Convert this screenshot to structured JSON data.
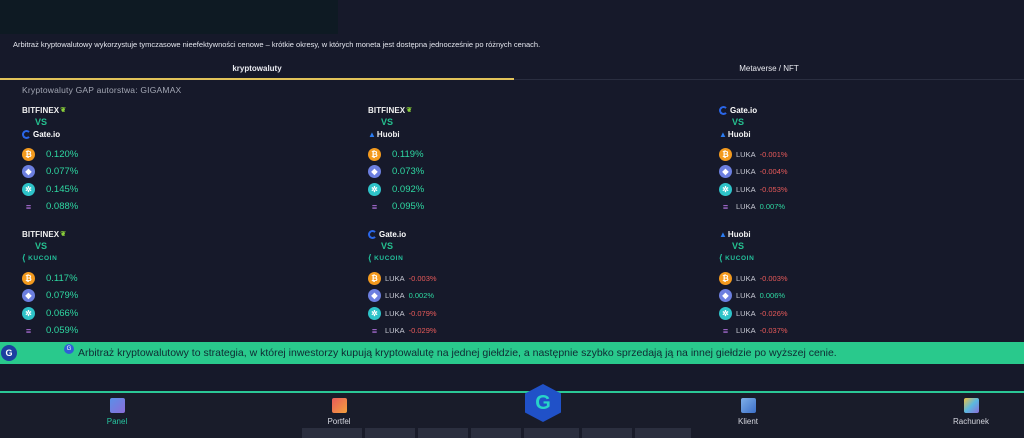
{
  "intro_text": "Arbitraż kryptowalutowy wykorzystuje tymczasowe nieefektywności cenowe – krótkie okresy, w których moneta jest dostępna jednocześnie po różnych cenach.",
  "tabs": [
    {
      "label": "kryptowaluty",
      "active": true
    },
    {
      "label": "Metaverse / NFT",
      "active": false
    }
  ],
  "gap_title": "Kryptowaluty GAP autorstwa: GIGAMAX",
  "vs_symbol": "VS",
  "pairs": [
    {
      "from": "BITFINEX",
      "to": "Gate.io",
      "rows": [
        {
          "coin": "btc",
          "value": "0.120%",
          "sign": "pos"
        },
        {
          "coin": "eth",
          "value": "0.077%",
          "sign": "pos"
        },
        {
          "coin": "atom",
          "value": "0.145%",
          "sign": "pos"
        },
        {
          "coin": "sol",
          "value": "0.088%",
          "sign": "pos"
        }
      ]
    },
    {
      "from": "BITFINEX",
      "to": "Huobi",
      "rows": [
        {
          "coin": "btc",
          "value": "0.119%",
          "sign": "pos"
        },
        {
          "coin": "eth",
          "value": "0.073%",
          "sign": "pos"
        },
        {
          "coin": "atom",
          "value": "0.092%",
          "sign": "pos"
        },
        {
          "coin": "sol",
          "value": "0.095%",
          "sign": "pos"
        }
      ]
    },
    {
      "from": "Gate.io",
      "to": "Huobi",
      "rows": [
        {
          "coin": "btc",
          "prefix": "LUKA",
          "value": "-0.001%",
          "sign": "neg"
        },
        {
          "coin": "eth",
          "prefix": "LUKA",
          "value": "-0.004%",
          "sign": "neg"
        },
        {
          "coin": "atom",
          "prefix": "LUKA",
          "value": "-0.053%",
          "sign": "neg"
        },
        {
          "coin": "sol",
          "prefix": "LUKA",
          "value": "0.007%",
          "sign": "pos"
        }
      ]
    },
    {
      "from": "BITFINEX",
      "to": "KUCOIN",
      "rows": [
        {
          "coin": "btc",
          "value": "0.117%",
          "sign": "pos"
        },
        {
          "coin": "eth",
          "value": "0.079%",
          "sign": "pos"
        },
        {
          "coin": "atom",
          "value": "0.066%",
          "sign": "pos"
        },
        {
          "coin": "sol",
          "value": "0.059%",
          "sign": "pos"
        }
      ]
    },
    {
      "from": "Gate.io",
      "to": "KUCOIN",
      "rows": [
        {
          "coin": "btc",
          "prefix": "LUKA",
          "value": "-0.003%",
          "sign": "neg"
        },
        {
          "coin": "eth",
          "prefix": "LUKA",
          "value": "0.002%",
          "sign": "pos"
        },
        {
          "coin": "atom",
          "prefix": "LUKA",
          "value": "-0.079%",
          "sign": "neg"
        },
        {
          "coin": "sol",
          "prefix": "LUKA",
          "value": "-0.029%",
          "sign": "neg"
        }
      ]
    },
    {
      "from": "Huobi",
      "to": "KUCOIN",
      "rows": [
        {
          "coin": "btc",
          "prefix": "LUKA",
          "value": "-0.003%",
          "sign": "neg"
        },
        {
          "coin": "eth",
          "prefix": "LUKA",
          "value": "0.006%",
          "sign": "pos"
        },
        {
          "coin": "atom",
          "prefix": "LUKA",
          "value": "-0.026%",
          "sign": "neg"
        },
        {
          "coin": "sol",
          "prefix": "LUKA",
          "value": "-0.037%",
          "sign": "neg"
        }
      ]
    }
  ],
  "ticker_text": "Arbitraż kryptowalutowy to strategia, w której inwestorzy kupują kryptowalutę na jednej giełdzie, a następnie szybko sprzedają ją na innej giełdzie po wyższej cenie.",
  "nav": [
    {
      "label": "Panel",
      "active": true,
      "icon": "panel-icon"
    },
    {
      "label": "Portfel",
      "active": false,
      "icon": "wallet-icon"
    },
    {
      "label": "Klient",
      "active": false,
      "icon": "client-icon"
    },
    {
      "label": "Rachunek",
      "active": false,
      "icon": "account-icon"
    }
  ],
  "colors": {
    "accent_green": "#29c98c",
    "positive": "#2ed8a2",
    "negative": "#e85a5a",
    "tab_underline": "#e2c35a",
    "background": "#16192a"
  }
}
